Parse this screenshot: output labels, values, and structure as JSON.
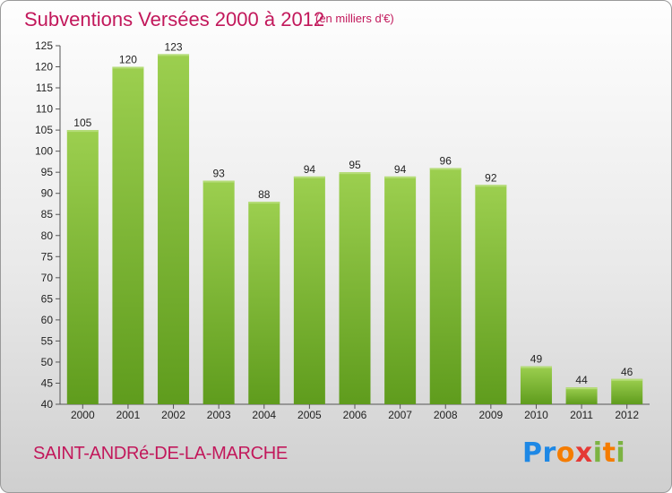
{
  "header": {
    "title": "Subventions Versées 2000 à 2012",
    "unit": "(en milliers d'€)"
  },
  "footer": {
    "commune": "SAINT-ANDRé-DE-LA-MARCHE",
    "logo": "Proxiti",
    "logo_colors": [
      "#1e88e5",
      "#f57c00",
      "#e53935",
      "#7cb342"
    ]
  },
  "chart_data": {
    "type": "bar",
    "title": "Subventions Versées 2000 à 2012",
    "subtitle": "(en milliers d'€)",
    "categories": [
      "2000",
      "2001",
      "2002",
      "2003",
      "2004",
      "2005",
      "2006",
      "2007",
      "2008",
      "2009",
      "2010",
      "2011",
      "2012"
    ],
    "values": [
      105,
      120,
      123,
      93,
      88,
      94,
      95,
      94,
      96,
      92,
      49,
      44,
      46
    ],
    "ylim": [
      40,
      125
    ],
    "yticks": [
      40,
      45,
      50,
      55,
      60,
      65,
      70,
      75,
      80,
      85,
      90,
      95,
      100,
      105,
      110,
      115,
      120,
      125
    ],
    "grid": false,
    "legend": "none",
    "bar_color_top": "#9ccf4f",
    "bar_color_bottom": "#5f9c1d"
  }
}
